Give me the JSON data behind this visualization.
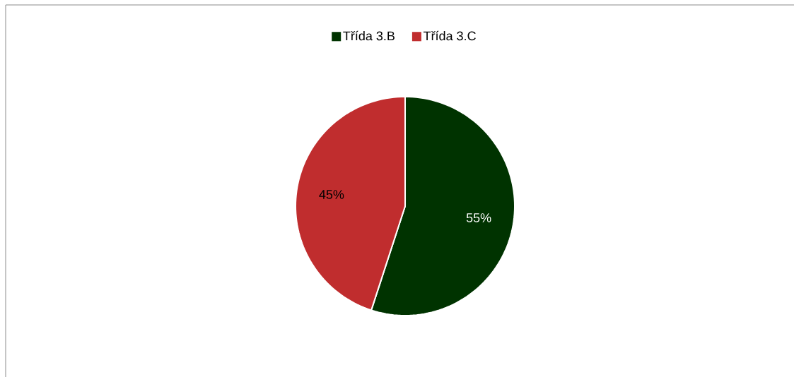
{
  "chart_data": {
    "type": "pie",
    "categories": [
      "Třída 3.B",
      "Třída 3.C"
    ],
    "values": [
      55,
      45
    ],
    "colors": [
      "#003300",
      "#c02d2e"
    ],
    "value_labels": [
      "55%",
      "45%"
    ],
    "legend": "top"
  }
}
